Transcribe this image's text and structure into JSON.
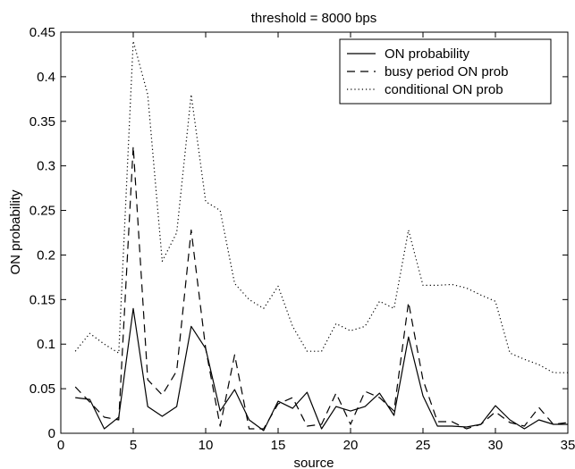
{
  "chart_data": {
    "type": "line",
    "title": "threshold = 8000 bps",
    "xlabel": "source",
    "ylabel": "ON probability",
    "xlim": [
      0,
      35
    ],
    "ylim": [
      0,
      0.45
    ],
    "xticks": [
      0,
      5,
      10,
      15,
      20,
      25,
      30,
      35
    ],
    "xtick_labels": [
      "0",
      "5",
      "10",
      "15",
      "20",
      "25",
      "30",
      "35"
    ],
    "yticks": [
      0,
      0.05,
      0.1,
      0.15,
      0.2,
      0.25,
      0.3,
      0.35,
      0.4,
      0.45
    ],
    "ytick_labels": [
      "0",
      "0.05",
      "0.1",
      "0.15",
      "0.2",
      "0.25",
      "0.3",
      "0.35",
      "0.4",
      "0.45"
    ],
    "grid": false,
    "legend_position": "top-right",
    "x": [
      1,
      2,
      3,
      4,
      5,
      6,
      7,
      8,
      9,
      10,
      11,
      12,
      13,
      14,
      15,
      16,
      17,
      18,
      19,
      20,
      21,
      22,
      23,
      24,
      25,
      26,
      27,
      28,
      29,
      30,
      31,
      32,
      33,
      34,
      35
    ],
    "series": [
      {
        "name": "ON probability",
        "style": "solid",
        "color": "#000000",
        "values": [
          0.04,
          0.038,
          0.005,
          0.018,
          0.14,
          0.03,
          0.019,
          0.03,
          0.12,
          0.095,
          0.025,
          0.049,
          0.015,
          0.003,
          0.036,
          0.028,
          0.046,
          0.005,
          0.03,
          0.025,
          0.03,
          0.045,
          0.02,
          0.108,
          0.042,
          0.008,
          0.008,
          0.007,
          0.01,
          0.031,
          0.015,
          0.005,
          0.015,
          0.01,
          0.01
        ]
      },
      {
        "name": "busy period ON prob",
        "style": "dashed",
        "color": "#000000",
        "values": [
          0.052,
          0.035,
          0.018,
          0.015,
          0.322,
          0.06,
          0.043,
          0.07,
          0.228,
          0.095,
          0.008,
          0.088,
          0.005,
          0.005,
          0.033,
          0.04,
          0.008,
          0.01,
          0.045,
          0.01,
          0.047,
          0.04,
          0.025,
          0.147,
          0.06,
          0.013,
          0.013,
          0.005,
          0.01,
          0.024,
          0.012,
          0.008,
          0.029,
          0.01,
          0.012
        ]
      },
      {
        "name": "conditional ON prob",
        "style": "dotted",
        "color": "#000000",
        "values": [
          0.092,
          0.112,
          0.1,
          0.09,
          0.44,
          0.38,
          0.193,
          0.225,
          0.38,
          0.26,
          0.25,
          0.168,
          0.15,
          0.14,
          0.165,
          0.12,
          0.092,
          0.092,
          0.123,
          0.115,
          0.12,
          0.148,
          0.14,
          0.228,
          0.166,
          0.166,
          0.167,
          0.163,
          0.155,
          0.148,
          0.09,
          0.083,
          0.077,
          0.068,
          0.068
        ]
      }
    ]
  }
}
